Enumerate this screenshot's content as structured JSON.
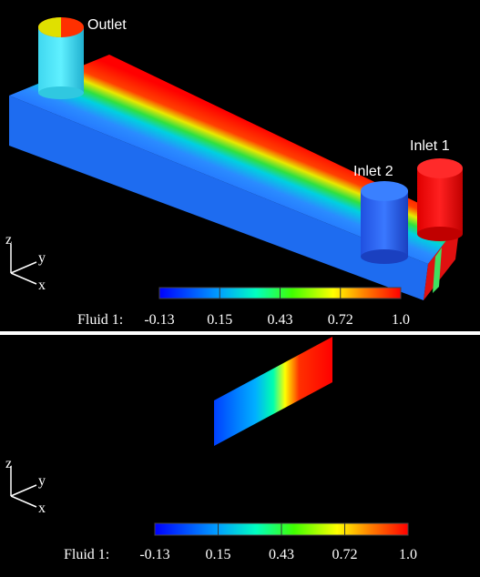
{
  "panels": [
    {
      "labels": {
        "outlet": "Outlet",
        "inlet1": "Inlet 1",
        "inlet2": "Inlet 2"
      },
      "axes": {
        "z": "z",
        "y": "y",
        "x": "x"
      },
      "colorbar": {
        "title": "Fluid 1:",
        "ticks": [
          "-0.13",
          "0.15",
          "0.43",
          "0.72",
          "1.0"
        ]
      }
    },
    {
      "axes": {
        "z": "z",
        "y": "y",
        "x": "x"
      },
      "colorbar": {
        "title": "Fluid 1:",
        "ticks": [
          "-0.13",
          "0.15",
          "0.43",
          "0.72",
          "1.0"
        ]
      }
    }
  ]
}
